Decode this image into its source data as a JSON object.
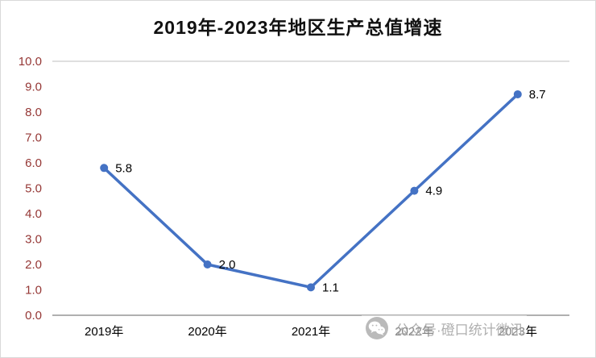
{
  "title": "2019年-2023年地区生产总值增速",
  "watermark": {
    "icon": "wechat-icon",
    "text": "公众号·磴口统计微讯",
    "color": "#a9a9a9"
  },
  "chart_data": {
    "type": "line",
    "title": "2019年-2023年地区生产总值增速",
    "categories": [
      "2019年",
      "2020年",
      "2021年",
      "2022年",
      "2023年"
    ],
    "values": [
      5.8,
      2.0,
      1.1,
      4.9,
      8.7
    ],
    "data_labels": [
      "5.8",
      "2.0",
      "1.1",
      "4.9",
      "8.7"
    ],
    "xlabel": "",
    "ylabel": "",
    "ylim": [
      0.0,
      10.0
    ],
    "ytick_step": 1.0,
    "ytick_labels": [
      "0.0",
      "1.0",
      "2.0",
      "3.0",
      "4.0",
      "5.0",
      "6.0",
      "7.0",
      "8.0",
      "9.0",
      "10.0"
    ],
    "grid": false,
    "legend": "none",
    "marker": "circle",
    "colors": {
      "line": "#4472C4",
      "marker": "#4472C4",
      "y_tick_labels": "#953735",
      "x_tick_labels": "#000000",
      "data_labels": "#000000",
      "top_border": "#bfbfbf",
      "x_axis_line": "#808080"
    }
  }
}
